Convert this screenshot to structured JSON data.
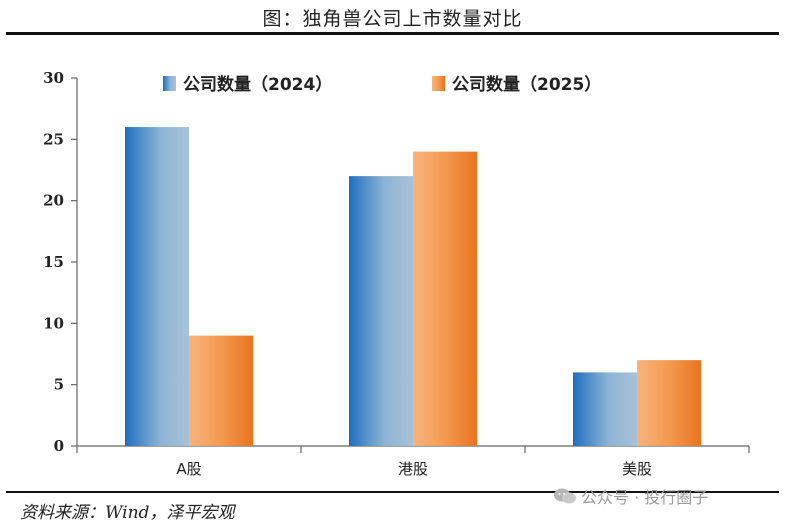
{
  "header": {
    "title": "图：独角兽公司上市数量对比"
  },
  "footer": {
    "source": "资料来源：Wind，泽平宏观",
    "watermark": "公众号 · 投行圈子"
  },
  "chart_data": {
    "type": "bar",
    "categories": [
      "A股",
      "港股",
      "美股"
    ],
    "series": [
      {
        "name": "公司数量（2024）",
        "values": [
          26,
          22,
          6
        ],
        "color": "#2f7cc0"
      },
      {
        "name": "公司数量（2025）",
        "values": [
          9,
          24,
          7
        ],
        "color": "#ee7d2a"
      }
    ],
    "ylim": [
      0,
      30
    ],
    "yticks": [
      0,
      5,
      10,
      15,
      20,
      25,
      30
    ],
    "legend": "top-center",
    "grid": false
  }
}
